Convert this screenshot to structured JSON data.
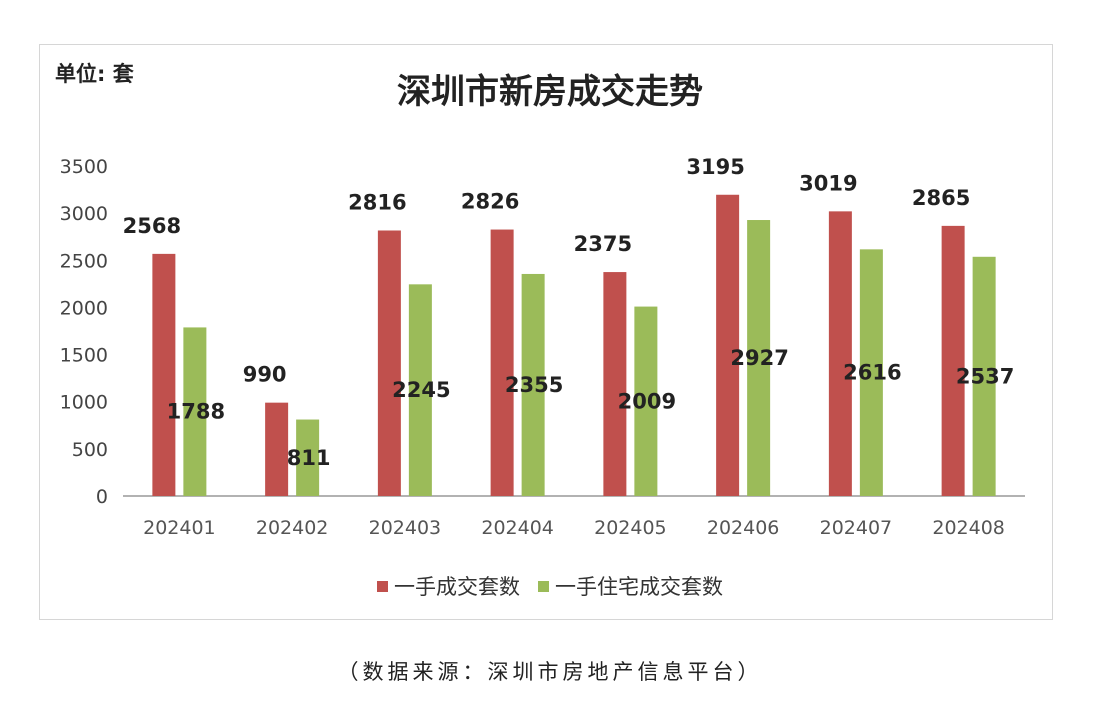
{
  "unit_label": "单位: 套",
  "source_note": "（数据来源：深圳市房地产信息平台）",
  "colors": {
    "series1": "#c0504d",
    "series2": "#9bbb59",
    "axis": "#999999",
    "text": "#222222"
  },
  "chart_data": {
    "type": "bar",
    "title": "深圳市新房成交走势",
    "categories": [
      "202401",
      "202402",
      "202403",
      "202404",
      "202405",
      "202406",
      "202407",
      "202408"
    ],
    "series": [
      {
        "name": "一手成交套数",
        "values": [
          2568,
          990,
          2816,
          2826,
          2375,
          3195,
          3019,
          2865
        ]
      },
      {
        "name": "一手住宅成交套数",
        "values": [
          1788,
          811,
          2245,
          2355,
          2009,
          2927,
          2616,
          2537
        ]
      }
    ],
    "yticks": [
      0,
      500,
      1000,
      1500,
      2000,
      2500,
      3000,
      3500
    ],
    "ylim": [
      0,
      3500
    ],
    "legend": "bottom"
  }
}
